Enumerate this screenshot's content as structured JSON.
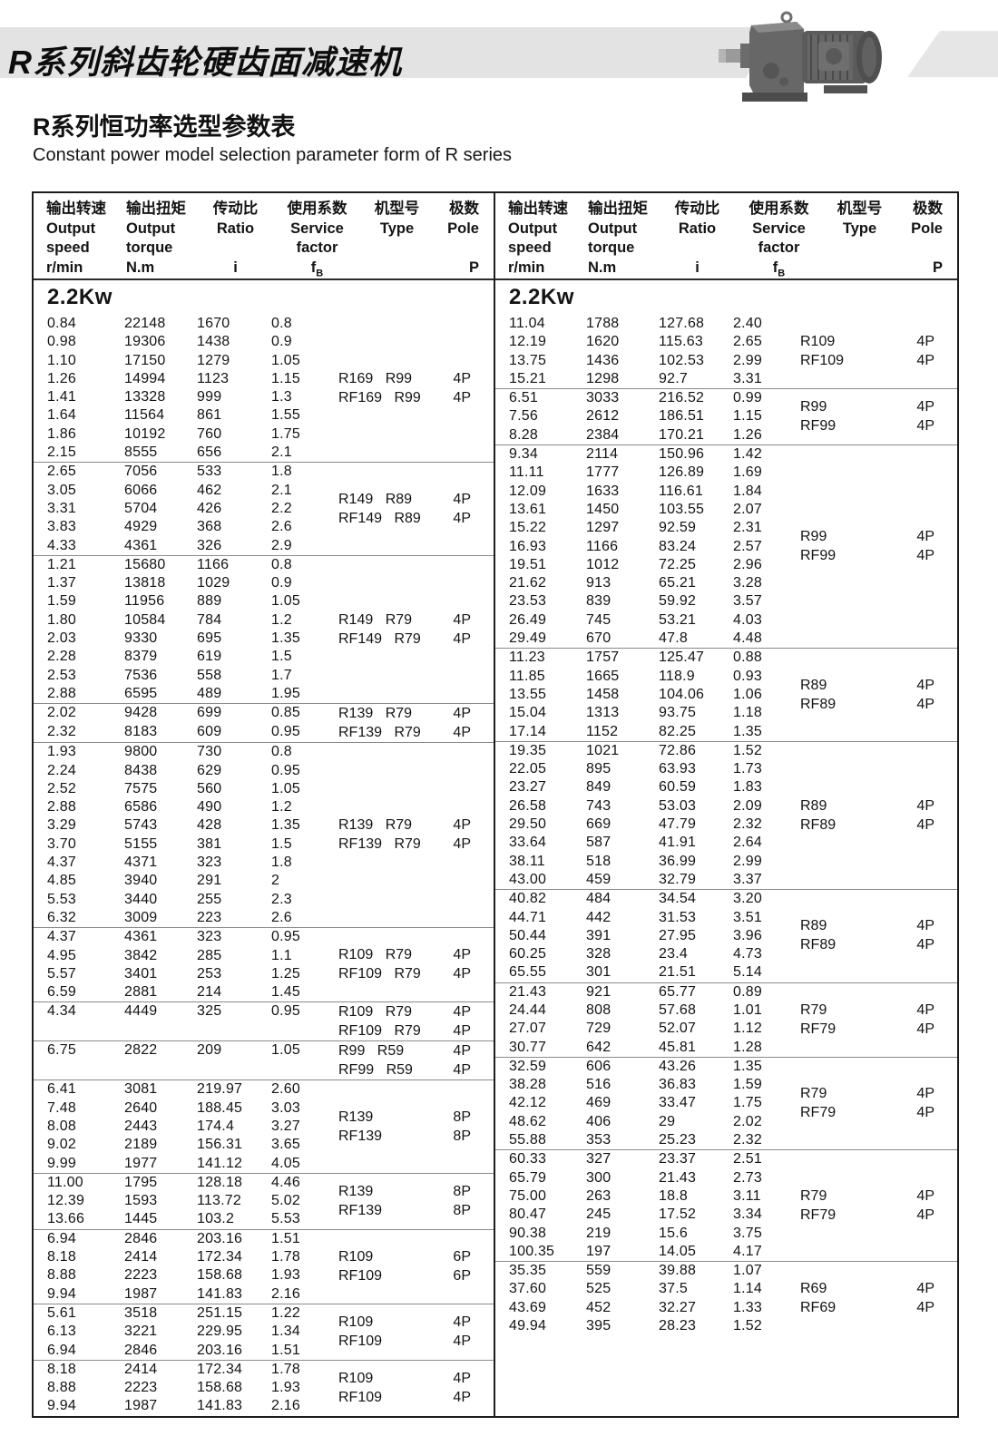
{
  "banner": {
    "title": "R系列斜齿轮硬齿面减速机"
  },
  "heading": {
    "title_zh": "R系列恒功率选型参数表",
    "title_en": "Constant power model selection parameter form of R series"
  },
  "colors": {
    "band_gray": "#e3e3e3",
    "line_dark": "#1c1c1c",
    "divider_gray": "#8a8a8a"
  },
  "table": {
    "headers": {
      "speed_zh": "输出转速",
      "speed_en1": "Output",
      "speed_en2": "speed",
      "speed_unit": "r/min",
      "torque_zh": "输出扭矩",
      "torque_en1": "Output",
      "torque_en2": "torque",
      "torque_unit": "N.m",
      "ratio_zh": "传动比",
      "ratio_en": "Ratio",
      "ratio_unit": "i",
      "factor_zh": "使用系数",
      "factor_en1": "Service",
      "factor_en2": "factor",
      "factor_unit": "f",
      "factor_sub": "B",
      "type_zh": "机型号",
      "type_en": "Type",
      "pole_zh": "极数",
      "pole_en": "Pole",
      "pole_unit": "P"
    },
    "power_label": "2.2Kw",
    "left_blocks": [
      {
        "rows": [
          [
            "0.84",
            "22148",
            "1670",
            "0.8"
          ],
          [
            "0.98",
            "19306",
            "1438",
            "0.9"
          ],
          [
            "1.10",
            "17150",
            "1279",
            "1.05"
          ],
          [
            "1.26",
            "14994",
            "1123",
            "1.15"
          ],
          [
            "1.41",
            "13328",
            "999",
            "1.3"
          ],
          [
            "1.64",
            "11564",
            "861",
            "1.55"
          ],
          [
            "1.86",
            "10192",
            "760",
            "1.75"
          ],
          [
            "2.15",
            "8555",
            "656",
            "2.1"
          ]
        ],
        "types": [
          [
            "R169 R99",
            "4P"
          ],
          [
            "RF169 R99",
            "4P"
          ]
        ]
      },
      {
        "rows": [
          [
            "2.65",
            "7056",
            "533",
            "1.8"
          ],
          [
            "3.05",
            "6066",
            "462",
            "2.1"
          ],
          [
            "3.31",
            "5704",
            "426",
            "2.2"
          ],
          [
            "3.83",
            "4929",
            "368",
            "2.6"
          ],
          [
            "4.33",
            "4361",
            "326",
            "2.9"
          ]
        ],
        "types": [
          [
            "R149 R89",
            "4P"
          ],
          [
            "RF149 R89",
            "4P"
          ]
        ]
      },
      {
        "rows": [
          [
            "1.21",
            "15680",
            "1166",
            "0.8"
          ],
          [
            "1.37",
            "13818",
            "1029",
            "0.9"
          ],
          [
            "1.59",
            "11956",
            "889",
            "1.05"
          ],
          [
            "1.80",
            "10584",
            "784",
            "1.2"
          ],
          [
            "2.03",
            "9330",
            "695",
            "1.35"
          ],
          [
            "2.28",
            "8379",
            "619",
            "1.5"
          ],
          [
            "2.53",
            "7536",
            "558",
            "1.7"
          ],
          [
            "2.88",
            "6595",
            "489",
            "1.95"
          ]
        ],
        "types": [
          [
            "R149 R79",
            "4P"
          ],
          [
            "RF149 R79",
            "4P"
          ]
        ]
      },
      {
        "rows": [
          [
            "2.02",
            "9428",
            "699",
            "0.85"
          ],
          [
            "2.32",
            "8183",
            "609",
            "0.95"
          ]
        ],
        "types": [
          [
            "R139 R79",
            "4P"
          ],
          [
            "RF139 R79",
            "4P"
          ]
        ]
      },
      {
        "rows": [
          [
            "1.93",
            "9800",
            "730",
            "0.8"
          ],
          [
            "2.24",
            "8438",
            "629",
            "0.95"
          ],
          [
            "2.52",
            "7575",
            "560",
            "1.05"
          ],
          [
            "2.88",
            "6586",
            "490",
            "1.2"
          ],
          [
            "3.29",
            "5743",
            "428",
            "1.35"
          ],
          [
            "3.70",
            "5155",
            "381",
            "1.5"
          ],
          [
            "4.37",
            "4371",
            "323",
            "1.8"
          ],
          [
            "4.85",
            "3940",
            "291",
            "2"
          ],
          [
            "5.53",
            "3440",
            "255",
            "2.3"
          ],
          [
            "6.32",
            "3009",
            "223",
            "2.6"
          ]
        ],
        "types": [
          [
            "R139 R79",
            "4P"
          ],
          [
            "RF139 R79",
            "4P"
          ]
        ]
      },
      {
        "rows": [
          [
            "4.37",
            "4361",
            "323",
            "0.95"
          ],
          [
            "4.95",
            "3842",
            "285",
            "1.1"
          ],
          [
            "5.57",
            "3401",
            "253",
            "1.25"
          ],
          [
            "6.59",
            "2881",
            "214",
            "1.45"
          ]
        ],
        "types": [
          [
            "R109 R79",
            "4P"
          ],
          [
            "RF109 R79",
            "4P"
          ]
        ]
      },
      {
        "rows": [
          [
            "4.34",
            "4449",
            "325",
            "0.95"
          ]
        ],
        "types": [
          [
            "R109 R79",
            "4P"
          ],
          [
            "RF109 R79",
            "4P"
          ]
        ]
      },
      {
        "rows": [
          [
            "6.75",
            "2822",
            "209",
            "1.05"
          ]
        ],
        "types": [
          [
            "R99 R59",
            "4P"
          ],
          [
            "RF99 R59",
            "4P"
          ]
        ]
      },
      {
        "rows": [
          [
            "6.41",
            "3081",
            "219.97",
            "2.60"
          ],
          [
            "7.48",
            "2640",
            "188.45",
            "3.03"
          ],
          [
            "8.08",
            "2443",
            "174.4",
            "3.27"
          ],
          [
            "9.02",
            "2189",
            "156.31",
            "3.65"
          ],
          [
            "9.99",
            "1977",
            "141.12",
            "4.05"
          ]
        ],
        "types": [
          [
            "R139",
            "8P"
          ],
          [
            "RF139",
            "8P"
          ]
        ]
      },
      {
        "rows": [
          [
            "11.00",
            "1795",
            "128.18",
            "4.46"
          ],
          [
            "12.39",
            "1593",
            "113.72",
            "5.02"
          ],
          [
            "13.66",
            "1445",
            "103.2",
            "5.53"
          ]
        ],
        "types": [
          [
            "R139",
            "8P"
          ],
          [
            "RF139",
            "8P"
          ]
        ]
      },
      {
        "rows": [
          [
            "6.94",
            "2846",
            "203.16",
            "1.51"
          ],
          [
            "8.18",
            "2414",
            "172.34",
            "1.78"
          ],
          [
            "8.88",
            "2223",
            "158.68",
            "1.93"
          ],
          [
            "9.94",
            "1987",
            "141.83",
            "2.16"
          ]
        ],
        "types": [
          [
            "R109",
            "6P"
          ],
          [
            "RF109",
            "6P"
          ]
        ]
      },
      {
        "rows": [
          [
            "5.61",
            "3518",
            "251.15",
            "1.22"
          ],
          [
            "6.13",
            "3221",
            "229.95",
            "1.34"
          ],
          [
            "6.94",
            "2846",
            "203.16",
            "1.51"
          ]
        ],
        "types": [
          [
            "R109",
            "4P"
          ],
          [
            "RF109",
            "4P"
          ]
        ]
      },
      {
        "rows": [
          [
            "8.18",
            "2414",
            "172.34",
            "1.78"
          ],
          [
            "8.88",
            "2223",
            "158.68",
            "1.93"
          ],
          [
            "9.94",
            "1987",
            "141.83",
            "2.16"
          ]
        ],
        "types": [
          [
            "R109",
            "4P"
          ],
          [
            "RF109",
            "4P"
          ]
        ]
      }
    ],
    "right_blocks": [
      {
        "rows": [
          [
            "11.04",
            "1788",
            "127.68",
            "2.40"
          ],
          [
            "12.19",
            "1620",
            "115.63",
            "2.65"
          ],
          [
            "13.75",
            "1436",
            "102.53",
            "2.99"
          ],
          [
            "15.21",
            "1298",
            "92.7",
            "3.31"
          ]
        ],
        "types": [
          [
            "R109",
            "4P"
          ],
          [
            "RF109",
            "4P"
          ]
        ]
      },
      {
        "rows": [
          [
            "6.51",
            "3033",
            "216.52",
            "0.99"
          ],
          [
            "7.56",
            "2612",
            "186.51",
            "1.15"
          ],
          [
            "8.28",
            "2384",
            "170.21",
            "1.26"
          ]
        ],
        "types": [
          [
            "R99",
            "4P"
          ],
          [
            "RF99",
            "4P"
          ]
        ]
      },
      {
        "rows": [
          [
            "9.34",
            "2114",
            "150.96",
            "1.42"
          ],
          [
            "11.11",
            "1777",
            "126.89",
            "1.69"
          ],
          [
            "12.09",
            "1633",
            "116.61",
            "1.84"
          ],
          [
            "13.61",
            "1450",
            "103.55",
            "2.07"
          ],
          [
            "15.22",
            "1297",
            "92.59",
            "2.31"
          ],
          [
            "16.93",
            "1166",
            "83.24",
            "2.57"
          ],
          [
            "19.51",
            "1012",
            "72.25",
            "2.96"
          ],
          [
            "21.62",
            "913",
            "65.21",
            "3.28"
          ],
          [
            "23.53",
            "839",
            "59.92",
            "3.57"
          ],
          [
            "26.49",
            "745",
            "53.21",
            "4.03"
          ],
          [
            "29.49",
            "670",
            "47.8",
            "4.48"
          ]
        ],
        "types": [
          [
            "R99",
            "4P"
          ],
          [
            "RF99",
            "4P"
          ]
        ]
      },
      {
        "rows": [
          [
            "11.23",
            "1757",
            "125.47",
            "0.88"
          ],
          [
            "11.85",
            "1665",
            "118.9",
            "0.93"
          ],
          [
            "13.55",
            "1458",
            "104.06",
            "1.06"
          ],
          [
            "15.04",
            "1313",
            "93.75",
            "1.18"
          ],
          [
            "17.14",
            "1152",
            "82.25",
            "1.35"
          ]
        ],
        "types": [
          [
            "R89",
            "4P"
          ],
          [
            "RF89",
            "4P"
          ]
        ]
      },
      {
        "rows": [
          [
            "19.35",
            "1021",
            "72.86",
            "1.52"
          ],
          [
            "22.05",
            "895",
            "63.93",
            "1.73"
          ],
          [
            "23.27",
            "849",
            "60.59",
            "1.83"
          ],
          [
            "26.58",
            "743",
            "53.03",
            "2.09"
          ],
          [
            "29.50",
            "669",
            "47.79",
            "2.32"
          ],
          [
            "33.64",
            "587",
            "41.91",
            "2.64"
          ],
          [
            "38.11",
            "518",
            "36.99",
            "2.99"
          ],
          [
            "43.00",
            "459",
            "32.79",
            "3.37"
          ]
        ],
        "types": [
          [
            "R89",
            "4P"
          ],
          [
            "RF89",
            "4P"
          ]
        ]
      },
      {
        "rows": [
          [
            "40.82",
            "484",
            "34.54",
            "3.20"
          ],
          [
            "44.71",
            "442",
            "31.53",
            "3.51"
          ],
          [
            "50.44",
            "391",
            "27.95",
            "3.96"
          ],
          [
            "60.25",
            "328",
            "23.4",
            "4.73"
          ],
          [
            "65.55",
            "301",
            "21.51",
            "5.14"
          ]
        ],
        "types": [
          [
            "R89",
            "4P"
          ],
          [
            "RF89",
            "4P"
          ]
        ]
      },
      {
        "rows": [
          [
            "21.43",
            "921",
            "65.77",
            "0.89"
          ],
          [
            "24.44",
            "808",
            "57.68",
            "1.01"
          ],
          [
            "27.07",
            "729",
            "52.07",
            "1.12"
          ],
          [
            "30.77",
            "642",
            "45.81",
            "1.28"
          ]
        ],
        "types": [
          [
            "R79",
            "4P"
          ],
          [
            "RF79",
            "4P"
          ]
        ]
      },
      {
        "rows": [
          [
            "32.59",
            "606",
            "43.26",
            "1.35"
          ],
          [
            "38.28",
            "516",
            "36.83",
            "1.59"
          ],
          [
            "42.12",
            "469",
            "33.47",
            "1.75"
          ],
          [
            "48.62",
            "406",
            "29",
            "2.02"
          ],
          [
            "55.88",
            "353",
            "25.23",
            "2.32"
          ]
        ],
        "types": [
          [
            "R79",
            "4P"
          ],
          [
            "RF79",
            "4P"
          ]
        ]
      },
      {
        "rows": [
          [
            "60.33",
            "327",
            "23.37",
            "2.51"
          ],
          [
            "65.79",
            "300",
            "21.43",
            "2.73"
          ],
          [
            "75.00",
            "263",
            "18.8",
            "3.11"
          ],
          [
            "80.47",
            "245",
            "17.52",
            "3.34"
          ],
          [
            "90.38",
            "219",
            "15.6",
            "3.75"
          ],
          [
            "100.35",
            "197",
            "14.05",
            "4.17"
          ]
        ],
        "types": [
          [
            "R79",
            "4P"
          ],
          [
            "RF79",
            "4P"
          ]
        ]
      },
      {
        "rows": [
          [
            "35.35",
            "559",
            "39.88",
            "1.07"
          ],
          [
            "37.60",
            "525",
            "37.5",
            "1.14"
          ],
          [
            "43.69",
            "452",
            "32.27",
            "1.33"
          ],
          [
            "49.94",
            "395",
            "28.23",
            "1.52"
          ]
        ],
        "types": [
          [
            "R69",
            "4P"
          ],
          [
            "RF69",
            "4P"
          ]
        ]
      }
    ]
  }
}
